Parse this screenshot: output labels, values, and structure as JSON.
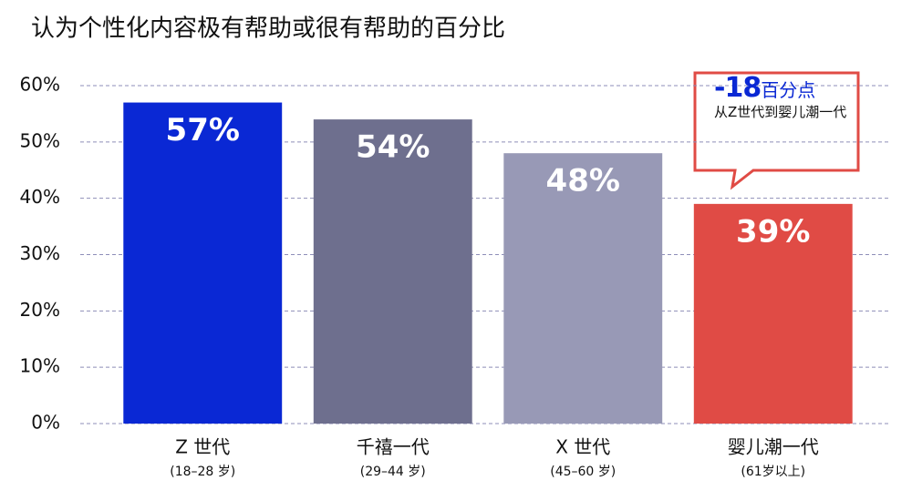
{
  "chart_data": {
    "type": "bar",
    "title": "认为个性化内容极有帮助或很有帮助的百分比",
    "categories": [
      "Z 世代",
      "千禧一代",
      "X 世代",
      "婴儿潮一代"
    ],
    "category_notes": [
      "(18–28 岁)",
      "(29–44 岁)",
      "(45–60 岁)",
      "(61岁以上)"
    ],
    "values": [
      57,
      54,
      48,
      39
    ],
    "value_labels": [
      "57%",
      "54%",
      "48%",
      "39%"
    ],
    "colors": [
      "#0a28d4",
      "#6e6f8e",
      "#9899b6",
      "#e04b45"
    ],
    "ylim": [
      0,
      60
    ],
    "yticks": [
      {
        "value": 0,
        "label": "0%"
      },
      {
        "value": 10,
        "label": "10%"
      },
      {
        "value": 20,
        "label": "20%"
      },
      {
        "value": 30,
        "label": "30%"
      },
      {
        "value": 40,
        "label": "40%"
      },
      {
        "value": 50,
        "label": "50%"
      },
      {
        "value": 60,
        "label": "60%"
      }
    ],
    "grid": true,
    "annotation": {
      "value": -18,
      "unit": "百分点",
      "text": "从Z世代到婴儿潮一代"
    }
  }
}
